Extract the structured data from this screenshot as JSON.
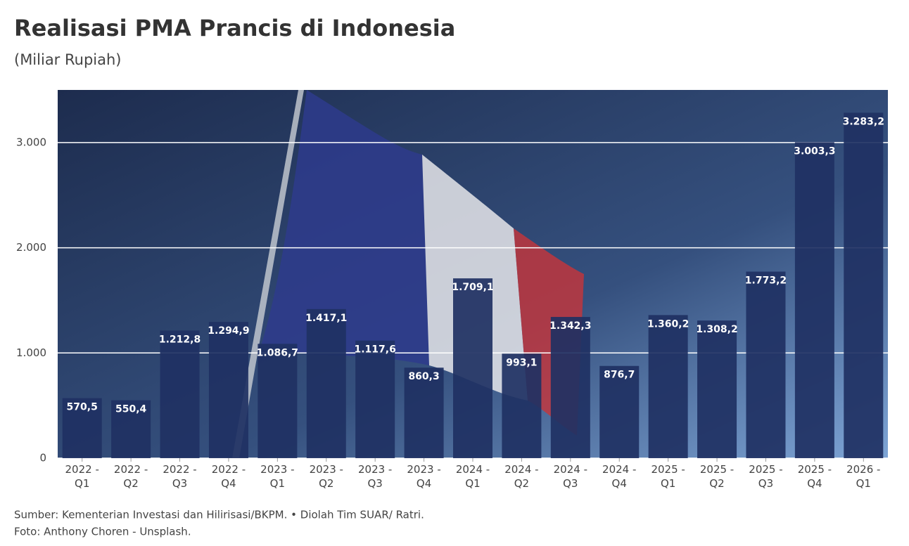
{
  "chart_data": {
    "type": "bar",
    "title": "Realisasi PMA Prancis di Indonesia",
    "subtitle": "(Miliar Rupiah)",
    "categories": [
      "2022 - Q1",
      "2022 - Q2",
      "2022 - Q3",
      "2022 - Q4",
      "2023 - Q1",
      "2023 - Q2",
      "2023 - Q3",
      "2023 - Q4",
      "2024 - Q1",
      "2024 - Q2",
      "2024 - Q3",
      "2024 - Q4",
      "2025 - Q1",
      "2025 - Q2",
      "2025 - Q3",
      "2025 - Q4",
      "2026 - Q1"
    ],
    "values": [
      570.5,
      550.4,
      1212.8,
      1294.9,
      1086.7,
      1417.1,
      1117.6,
      860.3,
      1709.1,
      993.1,
      1342.3,
      876.7,
      1360.2,
      1308.2,
      1773.2,
      3003.3,
      3283.2
    ],
    "value_labels": [
      "570,5",
      "550,4",
      "1.212,8",
      "1.294,9",
      "1.086,7",
      "1.417,1",
      "1.117,6",
      "860,3",
      "1.709,1",
      "993,1",
      "1.342,3",
      "876,7",
      "1.360,2",
      "1.308,2",
      "1.773,2",
      "3.003,3",
      "3.283,2"
    ],
    "color": "#1f3163",
    "ylim": [
      0,
      3500
    ],
    "yticks": [
      0,
      {
        "value": 1000,
        "label": "1.000"
      },
      {
        "value": 2000,
        "label": "2.000"
      },
      {
        "value": 3000,
        "label": "3.000"
      }
    ],
    "grid": true,
    "footnotes": [
      "Sumber: Kementerian Investasi dan Hilirisasi/BKPM. • Diolah Tim SUAR/ Ratri.",
      "Foto: Anthony Choren - Unsplash."
    ]
  }
}
